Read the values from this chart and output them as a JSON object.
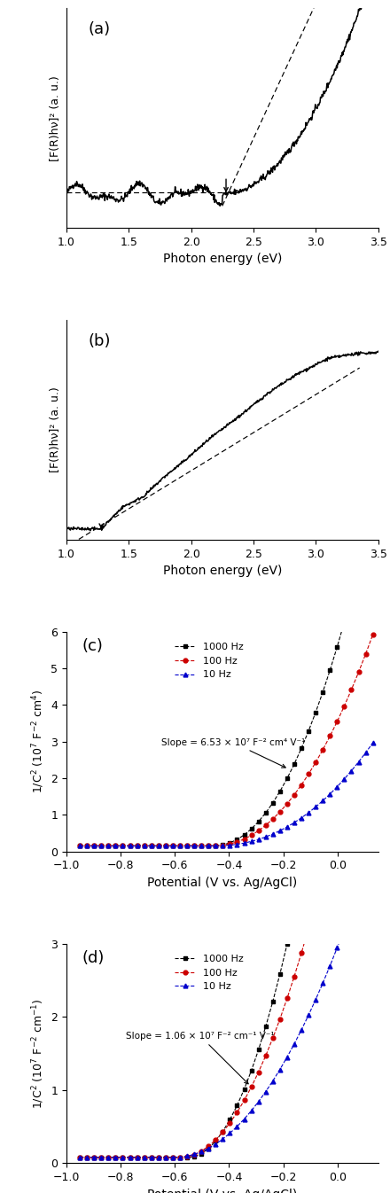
{
  "panel_a_label": "(a)",
  "panel_b_label": "(b)",
  "panel_c_label": "(c)",
  "panel_d_label": "(d)",
  "tauc_xlabel": "Photon energy (eV)",
  "tauc_ylabel_a": "[F(R)hν]² (a. u.)",
  "tauc_ylabel_b": "[F(R)hν]² (a. u.)",
  "tauc_xlim": [
    1.0,
    3.5
  ],
  "ms_xlabel": "Potential (V vs. Ag/AgCl)",
  "ms_xlim": [
    -1.0,
    0.15
  ],
  "ms_c_ylim": [
    0,
    6
  ],
  "ms_d_ylim": [
    0,
    3
  ],
  "ms_c_yticks": [
    0,
    1,
    2,
    3,
    4,
    5,
    6
  ],
  "ms_d_yticks": [
    0,
    1,
    2,
    3
  ],
  "slope_c_text": "Slope = 6.53 × 10⁷ F⁻² cm⁴ V⁻¹",
  "slope_d_text": "Slope = 1.06 × 10⁷ F⁻² cm⁻¹ V⁻¹",
  "legend_1000": "1000 Hz",
  "legend_100": "100 Hz",
  "legend_10": "10 Hz",
  "color_1000": "#000000",
  "color_100": "#cc0000",
  "color_10": "#0000cc",
  "bg_color": "#ffffff",
  "ms_xticks": [
    -1.0,
    -0.8,
    -0.6,
    -0.4,
    -0.2,
    0.0
  ]
}
